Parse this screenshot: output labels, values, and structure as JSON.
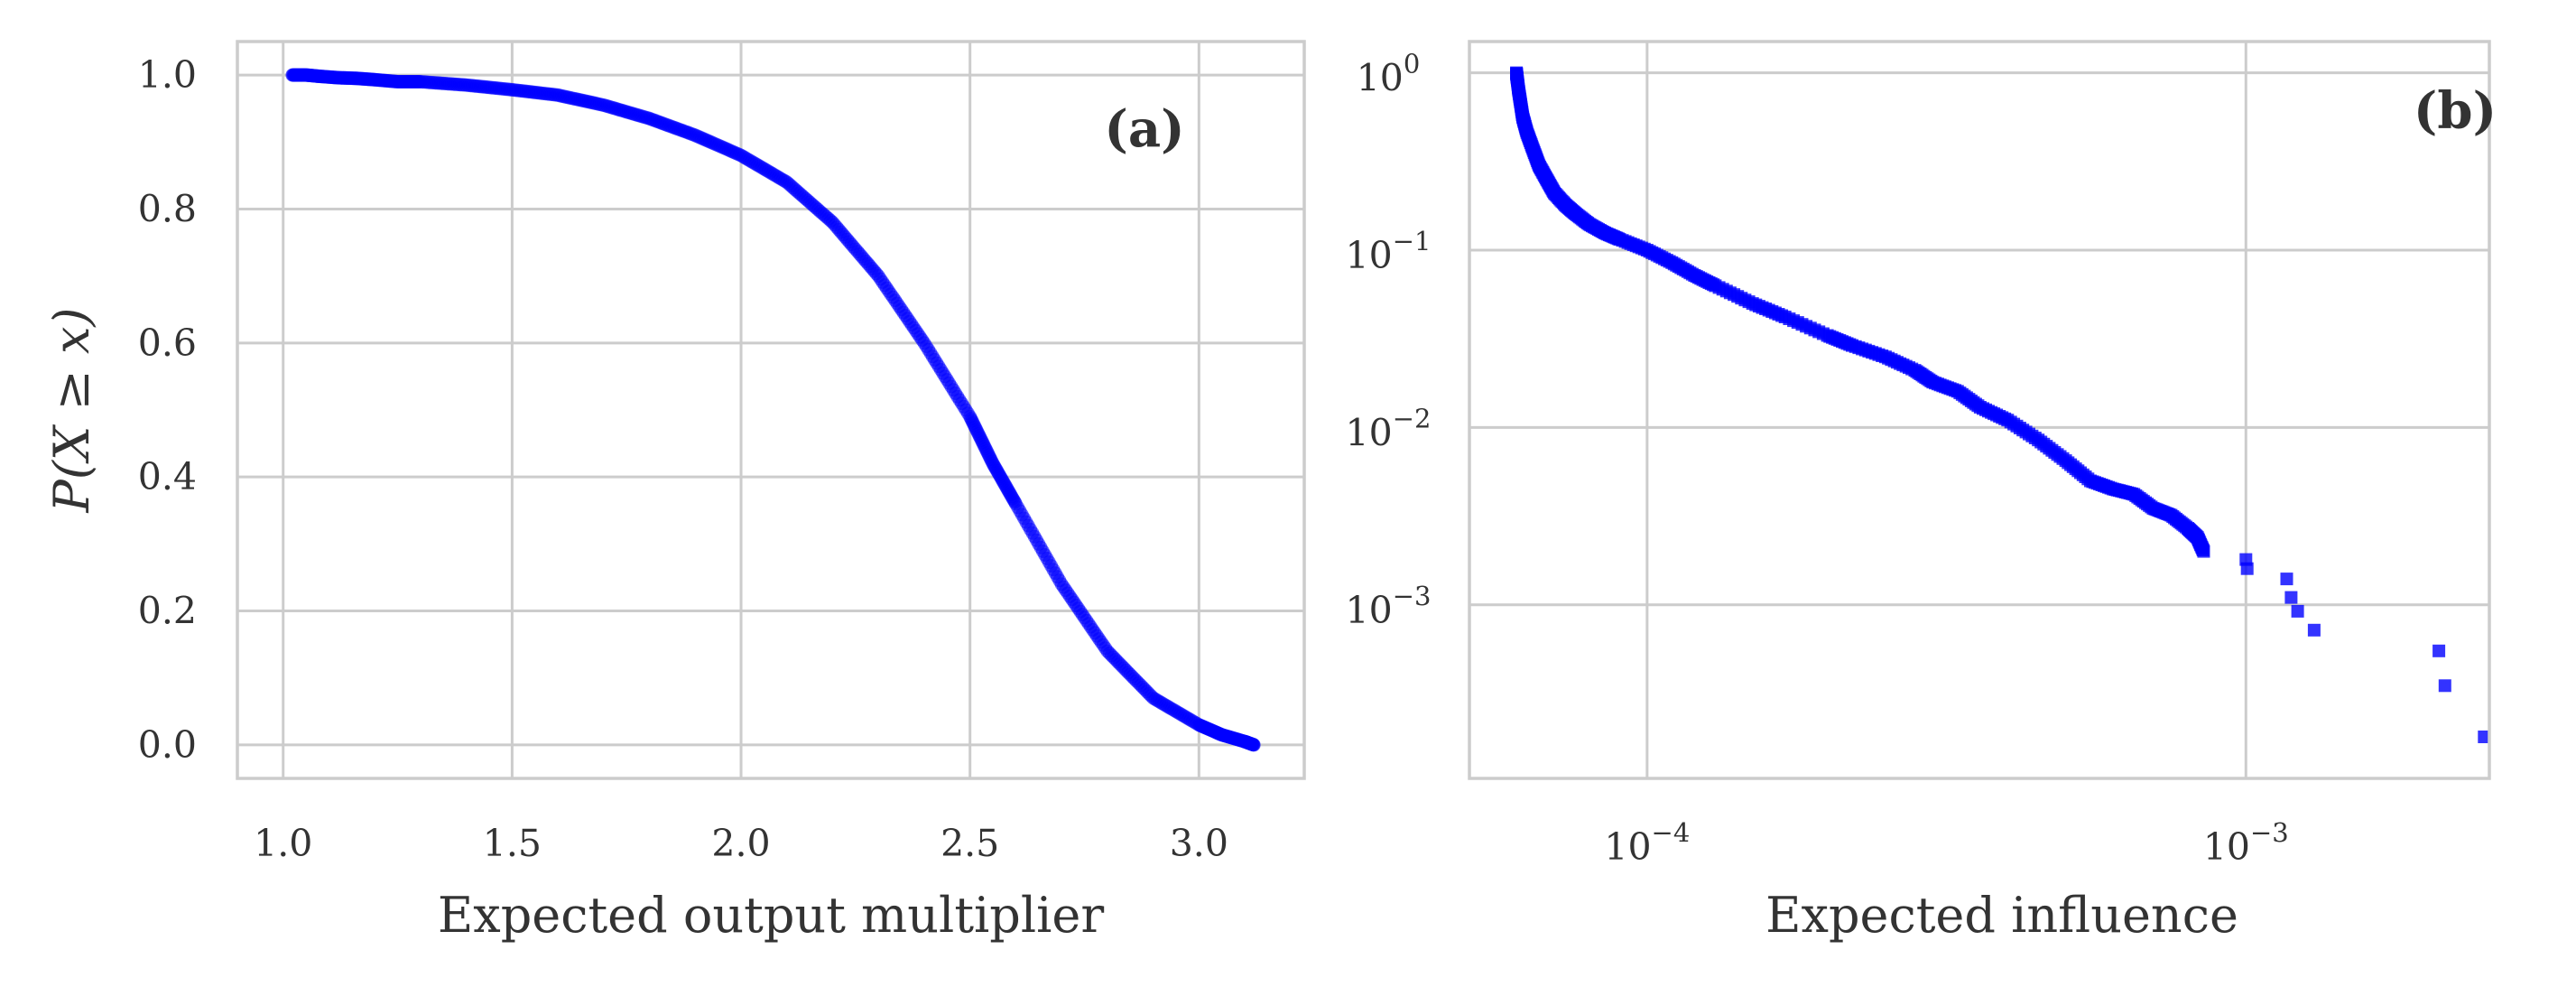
{
  "chart_data": [
    {
      "type": "scatter",
      "panel_label": "(a)",
      "xlabel": "Expected output multiplier",
      "ylabel": "P(X ≥ x)",
      "xlim": [
        0.9,
        3.23
      ],
      "ylim": [
        -0.05,
        1.05
      ],
      "x_ticks": [
        1.0,
        1.5,
        2.0,
        2.5,
        3.0
      ],
      "x_tick_labels": [
        "1.0",
        "1.5",
        "2.0",
        "2.5",
        "3.0"
      ],
      "y_ticks": [
        0.0,
        0.2,
        0.4,
        0.6,
        0.8,
        1.0
      ],
      "y_tick_labels": [
        "0.0",
        "0.2",
        "0.4",
        "0.6",
        "0.8",
        "1.0"
      ],
      "grid": true,
      "marker_color": "#0000ff",
      "x": [
        1.02,
        1.05,
        1.08,
        1.12,
        1.16,
        1.2,
        1.25,
        1.3,
        1.4,
        1.5,
        1.6,
        1.7,
        1.8,
        1.9,
        2.0,
        2.1,
        2.2,
        2.3,
        2.4,
        2.5,
        2.55,
        2.6,
        2.7,
        2.8,
        2.9,
        3.0,
        3.05,
        3.1,
        3.12
      ],
      "y": [
        1.0,
        1.0,
        0.998,
        0.996,
        0.995,
        0.993,
        0.99,
        0.99,
        0.985,
        0.978,
        0.97,
        0.955,
        0.935,
        0.91,
        0.88,
        0.84,
        0.78,
        0.7,
        0.6,
        0.49,
        0.42,
        0.36,
        0.24,
        0.14,
        0.07,
        0.03,
        0.015,
        0.005,
        0.0
      ]
    },
    {
      "type": "scatter",
      "panel_label": "(b)",
      "xlabel": "Expected influence",
      "ylabel": "",
      "x_scale": "log",
      "y_scale": "log",
      "xlim": [
        5.05e-05,
        0.00255
      ],
      "ylim": [
        0.000105,
        1.5
      ],
      "x_ticks": [
        0.0001,
        0.001
      ],
      "x_tick_labels": [
        {
          "base": "10",
          "exp": "−4"
        },
        {
          "base": "10",
          "exp": "−3"
        }
      ],
      "y_ticks": [
        1,
        0.1,
        0.01,
        0.001
      ],
      "y_tick_labels": [
        {
          "base": "10",
          "exp": "0"
        },
        {
          "base": "10",
          "exp": "−1"
        },
        {
          "base": "10",
          "exp": "−2"
        },
        {
          "base": "10",
          "exp": "−3"
        }
      ],
      "grid": true,
      "marker_color": "#0000ff",
      "x": [
        6.05e-05,
        6.07e-05,
        6.1e-05,
        6.15e-05,
        6.2e-05,
        6.3e-05,
        6.45e-05,
        6.6e-05,
        6.8e-05,
        7e-05,
        7.3e-05,
        7.6e-05,
        8e-05,
        8.5e-05,
        9e-05,
        0.0001,
        0.00011,
        0.00012,
        0.00013,
        0.00015,
        0.00017,
        0.0002,
        0.00022,
        0.00025,
        0.00028,
        0.0003,
        0.00033,
        0.00036,
        0.0004,
        0.00045,
        0.0005,
        0.00055,
        0.0006,
        0.00065,
        0.0007,
        0.00075,
        0.0008,
        0.00083,
        0.00085,
        0.001,
        0.001005,
        0.00117,
        0.00119,
        0.00122,
        0.0013,
        0.0021,
        0.00215,
        0.0025
      ],
      "y": [
        1.0,
        0.92,
        0.8,
        0.67,
        0.56,
        0.46,
        0.37,
        0.3,
        0.25,
        0.21,
        0.18,
        0.16,
        0.14,
        0.125,
        0.115,
        0.1,
        0.085,
        0.072,
        0.063,
        0.05,
        0.042,
        0.033,
        0.029,
        0.025,
        0.021,
        0.018,
        0.016,
        0.013,
        0.011,
        0.0085,
        0.0065,
        0.005,
        0.0045,
        0.0042,
        0.0035,
        0.0032,
        0.0027,
        0.0024,
        0.002,
        0.0018,
        0.0016,
        0.0014,
        0.0011,
        0.00092,
        0.00072,
        0.00055,
        0.00035,
        0.00018
      ]
    }
  ]
}
